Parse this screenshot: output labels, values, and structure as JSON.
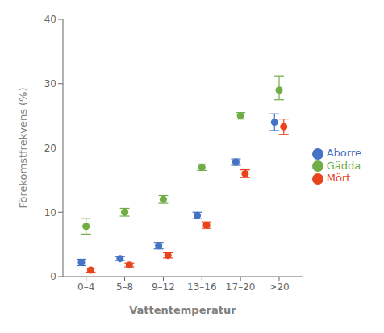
{
  "chart_data": {
    "type": "scatter",
    "xlabel": "Vattentemperatur",
    "ylabel": "Förekomstfrekvens (%)",
    "categories": [
      "0–4",
      "5–8",
      "9–12",
      "13–16",
      "17–20",
      ">20"
    ],
    "series": [
      {
        "name": "Aborre",
        "color": "#4472C4",
        "marker": "circle",
        "values": [
          2.2,
          2.8,
          4.8,
          9.5,
          17.8,
          24.0
        ],
        "yerr_low": [
          0.5,
          0.3,
          0.5,
          0.5,
          0.5,
          1.3
        ],
        "yerr_high": [
          0.5,
          0.3,
          0.5,
          0.5,
          0.5,
          1.3
        ]
      },
      {
        "name": "Gädda",
        "color": "#70AD47",
        "marker": "circle",
        "values": [
          7.8,
          10.0,
          12.0,
          17.0,
          25.0,
          29.0
        ],
        "yerr_low": [
          1.2,
          0.6,
          0.6,
          0.5,
          0.5,
          1.5
        ],
        "yerr_high": [
          1.2,
          0.6,
          0.6,
          0.5,
          0.5,
          2.2
        ]
      },
      {
        "name": "Mört",
        "color": "#E8431A",
        "marker": "circle",
        "values": [
          1.0,
          1.8,
          3.3,
          8.0,
          16.0,
          23.3
        ],
        "yerr_low": [
          0.3,
          0.3,
          0.4,
          0.5,
          0.6,
          1.2
        ],
        "yerr_high": [
          0.3,
          0.3,
          0.4,
          0.5,
          0.6,
          1.2
        ]
      }
    ],
    "ylim": [
      0,
      40
    ],
    "yticks": [
      0,
      10,
      20,
      30,
      40
    ],
    "grid": false,
    "legend": "right"
  }
}
